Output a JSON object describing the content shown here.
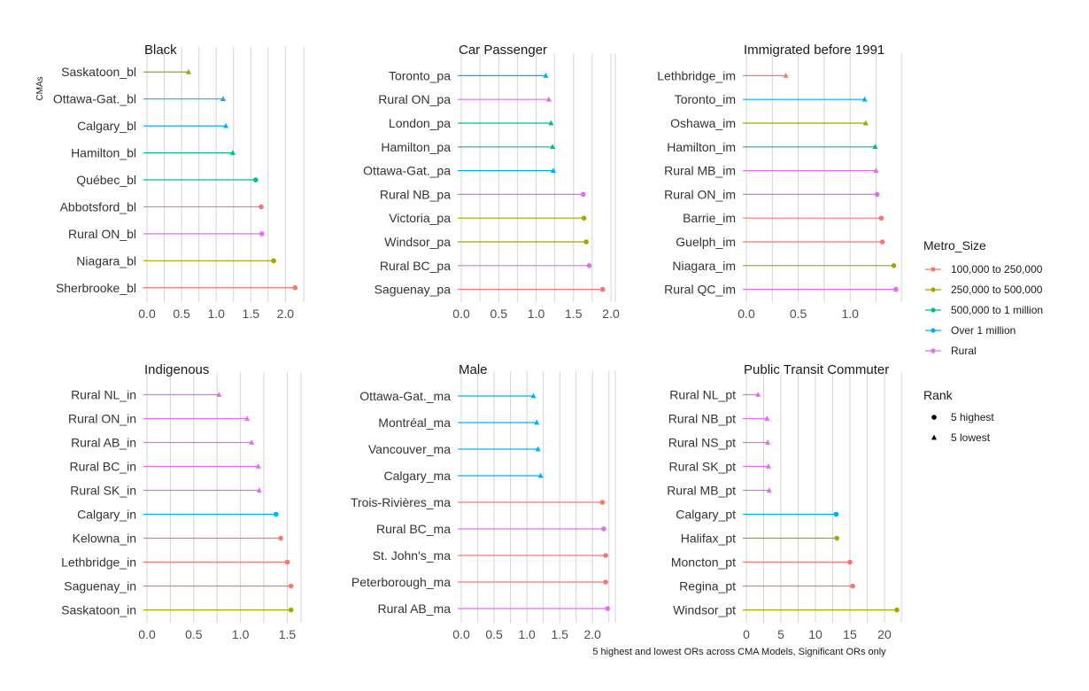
{
  "chart_data": {
    "type": "lollipop",
    "ylabel": "CMAs",
    "xlabel": "5 highest and lowest ORs across CMA Models, Significant ORs only",
    "colors": {
      "100,000 to 250,000": "#F8766D",
      "250,000 to 500,000": "#A3A500",
      "500,000 to 1 million": "#00BF7D",
      "Over 1 million": "#00B0F6",
      "Rural": "#E76BF3"
    },
    "legend": {
      "metro_title": "Metro_Size",
      "metro_items": [
        "100,000 to 250,000",
        "250,000 to 500,000",
        "500,000 to 1 million",
        "Over 1 million",
        "Rural"
      ],
      "rank_title": "Rank",
      "rank_items": [
        {
          "label": "5 highest",
          "shape": "circle"
        },
        {
          "label": "5 lowest",
          "shape": "triangle"
        }
      ],
      "position": "right"
    },
    "panels": [
      {
        "title": "Black",
        "xlim": [
          0,
          2.2
        ],
        "ticks": [
          0.0,
          0.5,
          1.0,
          1.5,
          2.0
        ],
        "tick_labels": [
          "0.0",
          "0.5",
          "1.0",
          "1.5",
          "2.0"
        ],
        "points": [
          {
            "label": "Saskatoon_bl",
            "value": 0.6,
            "metro": "250,000 to 500,000",
            "rank": "5 lowest"
          },
          {
            "label": "Ottawa-Gat._bl",
            "value": 1.1,
            "metro": "Over 1 million",
            "rank": "5 lowest"
          },
          {
            "label": "Calgary_bl",
            "value": 1.14,
            "metro": "Over 1 million",
            "rank": "5 lowest"
          },
          {
            "label": "Hamilton_bl",
            "value": 1.24,
            "metro": "500,000 to 1 million",
            "rank": "5 lowest"
          },
          {
            "label": "Québec_bl",
            "value": 1.57,
            "metro": "500,000 to 1 million",
            "rank": "5 highest"
          },
          {
            "label": "Abbotsford_bl",
            "value": 1.65,
            "metro": "100,000 to 250,000",
            "rank": "5 highest"
          },
          {
            "label": "Rural ON_bl",
            "value": 1.66,
            "metro": "Rural",
            "rank": "5 highest"
          },
          {
            "label": "Niagara_bl",
            "value": 1.83,
            "metro": "250,000 to 500,000",
            "rank": "5 highest"
          },
          {
            "label": "Sherbrooke_bl",
            "value": 2.14,
            "metro": "100,000 to 250,000",
            "rank": "5 highest"
          }
        ]
      },
      {
        "title": "Car Passenger",
        "xlim": [
          0,
          2.0
        ],
        "ticks": [
          0.0,
          0.5,
          1.0,
          1.5,
          2.0
        ],
        "tick_labels": [
          "0.0",
          "0.5",
          "1.0",
          "1.5",
          "2.0"
        ],
        "points": [
          {
            "label": "Toronto_pa",
            "value": 1.13,
            "metro": "Over 1 million",
            "rank": "5 lowest"
          },
          {
            "label": "Rural ON_pa",
            "value": 1.17,
            "metro": "Rural",
            "rank": "5 lowest"
          },
          {
            "label": "London_pa",
            "value": 1.2,
            "metro": "500,000 to 1 million",
            "rank": "5 lowest"
          },
          {
            "label": "Hamilton_pa",
            "value": 1.22,
            "metro": "500,000 to 1 million",
            "rank": "5 lowest"
          },
          {
            "label": "Ottawa-Gat._pa",
            "value": 1.23,
            "metro": "Over 1 million",
            "rank": "5 lowest"
          },
          {
            "label": "Rural NB_pa",
            "value": 1.63,
            "metro": "Rural",
            "rank": "5 highest"
          },
          {
            "label": "Victoria_pa",
            "value": 1.64,
            "metro": "250,000 to 500,000",
            "rank": "5 highest"
          },
          {
            "label": "Windsor_pa",
            "value": 1.67,
            "metro": "250,000 to 500,000",
            "rank": "5 highest"
          },
          {
            "label": "Rural BC_pa",
            "value": 1.71,
            "metro": "Rural",
            "rank": "5 highest"
          },
          {
            "label": "Saguenay_pa",
            "value": 1.89,
            "metro": "100,000 to 250,000",
            "rank": "5 highest"
          }
        ]
      },
      {
        "title": "Immigrated before 1991",
        "xlim": [
          0,
          1.45
        ],
        "ticks": [
          0.0,
          0.5,
          1.0
        ],
        "tick_labels": [
          "0.0",
          "0.5",
          "1.0"
        ],
        "points": [
          {
            "label": "Lethbridge_im",
            "value": 0.38,
            "metro": "100,000 to 250,000",
            "rank": "5 lowest"
          },
          {
            "label": "Toronto_im",
            "value": 1.14,
            "metro": "Over 1 million",
            "rank": "5 lowest"
          },
          {
            "label": "Oshawa_im",
            "value": 1.15,
            "metro": "250,000 to 500,000",
            "rank": "5 lowest"
          },
          {
            "label": "Hamilton_im",
            "value": 1.24,
            "metro": "500,000 to 1 million",
            "rank": "5 lowest"
          },
          {
            "label": "Rural MB_im",
            "value": 1.25,
            "metro": "Rural",
            "rank": "5 lowest"
          },
          {
            "label": "Rural ON_im",
            "value": 1.26,
            "metro": "Rural",
            "rank": "5 highest"
          },
          {
            "label": "Barrie_im",
            "value": 1.3,
            "metro": "100,000 to 250,000",
            "rank": "5 highest"
          },
          {
            "label": "Guelph_im",
            "value": 1.31,
            "metro": "100,000 to 250,000",
            "rank": "5 highest"
          },
          {
            "label": "Niagara_im",
            "value": 1.42,
            "metro": "250,000 to 500,000",
            "rank": "5 highest"
          },
          {
            "label": "Rural QC_im",
            "value": 1.44,
            "metro": "Rural",
            "rank": "5 highest"
          }
        ]
      },
      {
        "title": "Indigenous",
        "xlim": [
          0,
          1.6
        ],
        "ticks": [
          0.0,
          0.5,
          1.0,
          1.5
        ],
        "tick_labels": [
          "0.0",
          "0.5",
          "1.0",
          "1.5"
        ],
        "points": [
          {
            "label": "Rural NL_in",
            "value": 0.77,
            "metro": "Rural",
            "rank": "5 lowest"
          },
          {
            "label": "Rural ON_in",
            "value": 1.07,
            "metro": "Rural",
            "rank": "5 lowest"
          },
          {
            "label": "Rural AB_in",
            "value": 1.12,
            "metro": "Rural",
            "rank": "5 lowest"
          },
          {
            "label": "Rural BC_in",
            "value": 1.19,
            "metro": "Rural",
            "rank": "5 lowest"
          },
          {
            "label": "Rural SK_in",
            "value": 1.2,
            "metro": "Rural",
            "rank": "5 lowest"
          },
          {
            "label": "Calgary_in",
            "value": 1.38,
            "metro": "Over 1 million",
            "rank": "5 highest"
          },
          {
            "label": "Kelowna_in",
            "value": 1.43,
            "metro": "100,000 to 250,000",
            "rank": "5 highest"
          },
          {
            "label": "Lethbridge_in",
            "value": 1.5,
            "metro": "100,000 to 250,000",
            "rank": "5 highest"
          },
          {
            "label": "Saguenay_in",
            "value": 1.54,
            "metro": "100,000 to 250,000",
            "rank": "5 highest"
          },
          {
            "label": "Saskatoon_in",
            "value": 1.54,
            "metro": "250,000 to 500,000",
            "rank": "5 highest"
          }
        ]
      },
      {
        "title": "Male",
        "xlim": [
          0,
          2.28
        ],
        "ticks": [
          0.0,
          0.5,
          1.0,
          1.5,
          2.0
        ],
        "tick_labels": [
          "0.0",
          "0.5",
          "1.0",
          "1.5",
          "2.0"
        ],
        "points": [
          {
            "label": "Ottawa-Gat._ma",
            "value": 1.1,
            "metro": "Over 1 million",
            "rank": "5 lowest"
          },
          {
            "label": "Montréal_ma",
            "value": 1.15,
            "metro": "Over 1 million",
            "rank": "5 lowest"
          },
          {
            "label": "Vancouver_ma",
            "value": 1.17,
            "metro": "Over 1 million",
            "rank": "5 lowest"
          },
          {
            "label": "Calgary_ma",
            "value": 1.21,
            "metro": "Over 1 million",
            "rank": "5 lowest"
          },
          {
            "label": "Trois-Rivières_ma",
            "value": 2.15,
            "metro": "100,000 to 250,000",
            "rank": "5 highest"
          },
          {
            "label": "Rural BC_ma",
            "value": 2.17,
            "metro": "Rural",
            "rank": "5 highest"
          },
          {
            "label": "St. John's_ma",
            "value": 2.2,
            "metro": "100,000 to 250,000",
            "rank": "5 highest"
          },
          {
            "label": "Peterborough_ma",
            "value": 2.2,
            "metro": "100,000 to 250,000",
            "rank": "5 highest"
          },
          {
            "label": "Rural AB_ma",
            "value": 2.23,
            "metro": "Rural",
            "rank": "5 highest"
          }
        ]
      },
      {
        "title": "Public Transit Commuter",
        "xlim": [
          0,
          21.8
        ],
        "ticks": [
          0,
          5,
          10,
          15,
          20
        ],
        "tick_labels": [
          "0",
          "5",
          "10",
          "15",
          "20"
        ],
        "points": [
          {
            "label": "Rural NL_pt",
            "value": 1.7,
            "metro": "Rural",
            "rank": "5 lowest"
          },
          {
            "label": "Rural NB_pt",
            "value": 3.0,
            "metro": "Rural",
            "rank": "5 lowest"
          },
          {
            "label": "Rural NS_pt",
            "value": 3.1,
            "metro": "Rural",
            "rank": "5 lowest"
          },
          {
            "label": "Rural SK_pt",
            "value": 3.2,
            "metro": "Rural",
            "rank": "5 lowest"
          },
          {
            "label": "Rural MB_pt",
            "value": 3.3,
            "metro": "Rural",
            "rank": "5 lowest"
          },
          {
            "label": "Calgary_pt",
            "value": 13.0,
            "metro": "Over 1 million",
            "rank": "5 highest"
          },
          {
            "label": "Halifax_pt",
            "value": 13.1,
            "metro": "250,000 to 500,000",
            "rank": "5 highest"
          },
          {
            "label": "Moncton_pt",
            "value": 15.0,
            "metro": "100,000 to 250,000",
            "rank": "5 highest"
          },
          {
            "label": "Regina_pt",
            "value": 15.4,
            "metro": "100,000 to 250,000",
            "rank": "5 highest"
          },
          {
            "label": "Windsor_pt",
            "value": 21.8,
            "metro": "250,000 to 500,000",
            "rank": "5 highest"
          }
        ]
      }
    ]
  }
}
